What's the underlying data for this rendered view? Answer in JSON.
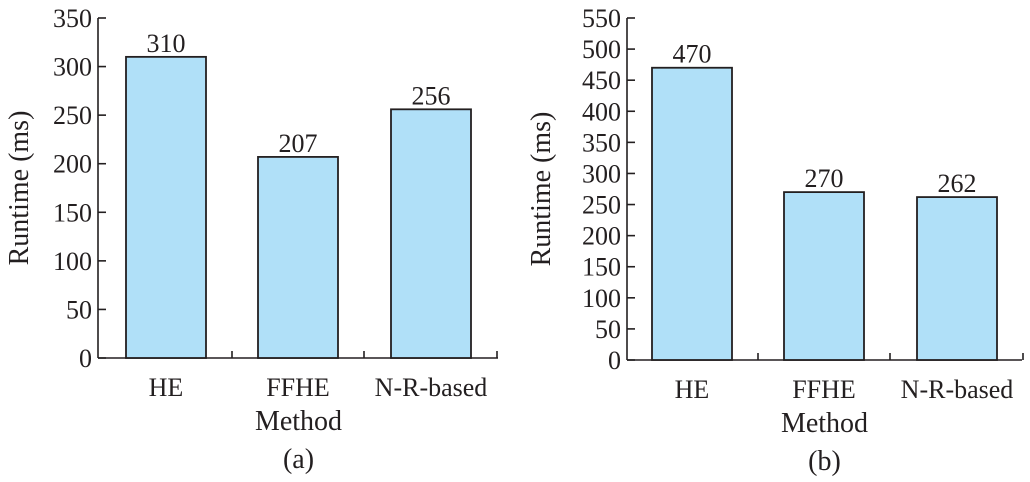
{
  "chart_data": [
    {
      "type": "bar",
      "panel_label": "(a)",
      "xlabel": "Method",
      "ylabel": "Runtime (ms)",
      "categories": [
        "HE",
        "FFHE",
        "N-R-based"
      ],
      "values": [
        310,
        207,
        256
      ],
      "data_labels": [
        "310",
        "207",
        "256"
      ],
      "ylim": [
        0,
        350
      ],
      "yticks": [
        0,
        50,
        100,
        150,
        200,
        250,
        300,
        350
      ],
      "bar_color": "#b0e0f8",
      "grid": false
    },
    {
      "type": "bar",
      "panel_label": "(b)",
      "xlabel": "Method",
      "ylabel": "Runtime (ms)",
      "categories": [
        "HE",
        "FFHE",
        "N-R-based"
      ],
      "values": [
        470,
        270,
        262
      ],
      "data_labels": [
        "470",
        "270",
        "262"
      ],
      "ylim": [
        0,
        550
      ],
      "yticks": [
        0,
        50,
        100,
        150,
        200,
        250,
        300,
        350,
        400,
        450,
        500,
        550
      ],
      "bar_color": "#b0e0f8",
      "grid": false
    }
  ]
}
